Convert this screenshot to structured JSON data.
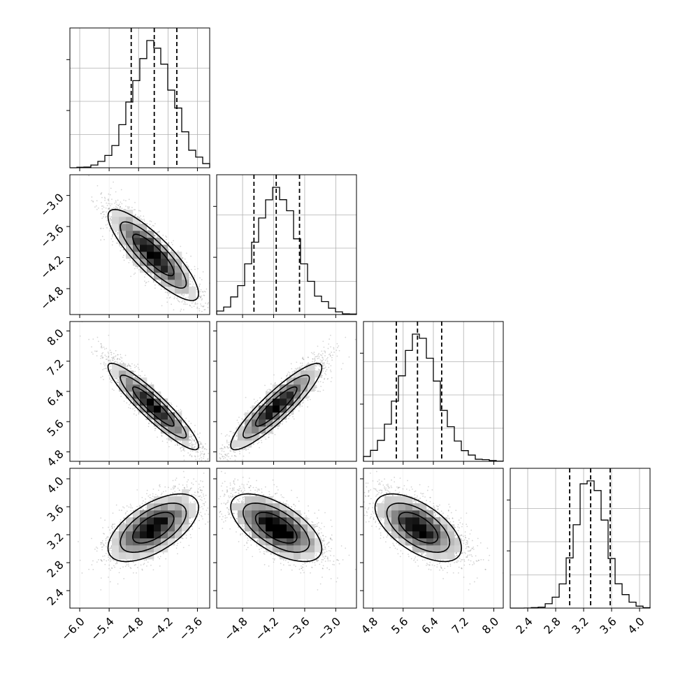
{
  "chart_data": {
    "type": "corner",
    "parameters": 4,
    "colors": {
      "line": "#000000",
      "grid": "#b0b0b0",
      "points": "#888888"
    },
    "ranges": [
      [
        -6.2,
        -3.35
      ],
      [
        -5.3,
        -2.6
      ],
      [
        4.55,
        8.25
      ],
      [
        2.15,
        4.15
      ]
    ],
    "tick_values": [
      [
        -6.0,
        -5.4,
        -4.8,
        -4.2,
        -3.6
      ],
      [
        -4.8,
        -4.2,
        -3.6,
        -3.0
      ],
      [
        4.8,
        5.6,
        6.4,
        7.2,
        8.0
      ],
      [
        2.4,
        2.8,
        3.2,
        3.6,
        4.0
      ]
    ],
    "tick_labels": [
      [
        "−6.0",
        "−5.4",
        "−4.8",
        "−4.2",
        "−3.6"
      ],
      [
        "−4.8",
        "−4.2",
        "−3.6",
        "−3.0"
      ],
      [
        "4.8",
        "5.6",
        "6.4",
        "7.2",
        "8.0"
      ],
      [
        "2.4",
        "2.8",
        "3.2",
        "3.6",
        "4.0"
      ]
    ],
    "row_tick_labels": [
      [],
      [
        "−3.0",
        "−3.6",
        "−4.2",
        "−4.8"
      ],
      [
        "8.0",
        "7.2",
        "6.4",
        "5.6",
        "4.8"
      ],
      [
        "4.0",
        "3.6",
        "3.2",
        "2.8",
        "2.4"
      ]
    ],
    "marginals": [
      {
        "param": 0,
        "mean": -4.5,
        "sd": 0.42,
        "quantiles": [
          -4.95,
          -4.48,
          -4.02
        ],
        "bins": 20
      },
      {
        "param": 1,
        "mean": -4.15,
        "sd": 0.4,
        "quantiles": [
          -4.58,
          -4.15,
          -3.7
        ],
        "bins": 20
      },
      {
        "param": 2,
        "mean": 6.0,
        "sd": 0.52,
        "quantiles": [
          5.42,
          5.98,
          6.62
        ],
        "bins": 20
      },
      {
        "param": 3,
        "mean": 3.3,
        "sd": 0.22,
        "quantiles": [
          3.0,
          3.3,
          3.58
        ],
        "bins": 20
      }
    ],
    "correlations": [
      [
        1.0,
        -0.85,
        -0.92,
        0.6
      ],
      [
        -0.85,
        1.0,
        0.9,
        -0.62
      ],
      [
        -0.92,
        0.9,
        1.0,
        -0.6
      ],
      [
        0.6,
        -0.62,
        -0.6,
        1.0
      ]
    ],
    "grid": true
  }
}
